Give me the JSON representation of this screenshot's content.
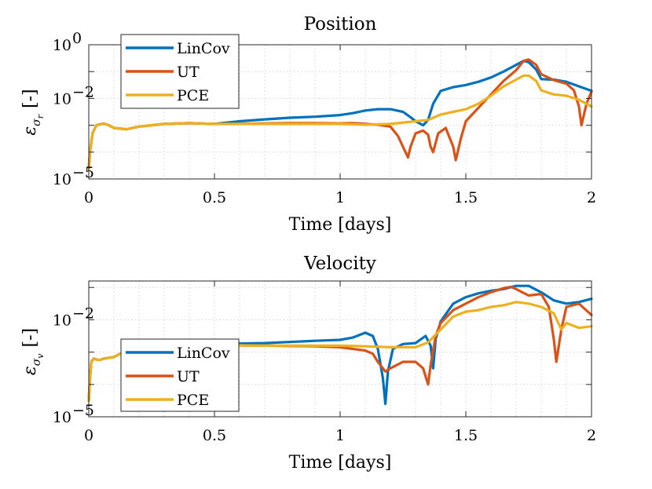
{
  "chart_data": [
    {
      "type": "line",
      "title": "Position",
      "xlabel": "Time [days]",
      "ylabel_main": "ε",
      "ylabel_sub": "σ",
      "ylabel_subsub": "r",
      "ylabel_unit": "[-]",
      "xlim": [
        0,
        2
      ],
      "ylim_log10": [
        -5,
        0
      ],
      "x_ticks": [
        0,
        0.5,
        1,
        1.5,
        2
      ],
      "x_tick_labels": [
        "0",
        "0.5",
        "1",
        "1.5",
        "2"
      ],
      "y_tick_labels": [
        {
          "log": 0,
          "mant": "10",
          "exp": "0"
        },
        {
          "log": -2,
          "mant": "10",
          "exp": "−2"
        },
        {
          "log": -5,
          "mant": "10",
          "exp": "−5"
        }
      ],
      "legend_position": "top-left",
      "series": [
        {
          "name": "LinCov",
          "color": "#0072BD",
          "x": [
            0.0,
            0.005,
            0.015,
            0.03,
            0.05,
            0.065,
            0.08,
            0.1,
            0.15,
            0.2,
            0.3,
            0.4,
            0.5,
            0.6,
            0.7,
            0.8,
            0.9,
            1.0,
            1.05,
            1.1,
            1.15,
            1.2,
            1.25,
            1.28,
            1.3,
            1.33,
            1.35,
            1.37,
            1.4,
            1.45,
            1.5,
            1.55,
            1.6,
            1.65,
            1.7,
            1.73,
            1.75,
            1.78,
            1.8,
            1.85,
            1.9,
            1.95,
            2.0
          ],
          "log10": [
            -4.6,
            -4.0,
            -3.3,
            -3.0,
            -2.95,
            -2.95,
            -3.0,
            -3.1,
            -3.15,
            -3.05,
            -2.95,
            -2.92,
            -2.95,
            -2.85,
            -2.78,
            -2.72,
            -2.68,
            -2.62,
            -2.55,
            -2.45,
            -2.4,
            -2.4,
            -2.5,
            -2.7,
            -2.85,
            -3.0,
            -2.8,
            -2.2,
            -1.72,
            -1.58,
            -1.5,
            -1.38,
            -1.22,
            -1.0,
            -0.75,
            -0.6,
            -0.65,
            -0.92,
            -1.28,
            -1.3,
            -1.38,
            -1.55,
            -1.72
          ]
        },
        {
          "name": "UT",
          "color": "#D95319",
          "x": [
            0.0,
            0.005,
            0.015,
            0.03,
            0.05,
            0.065,
            0.08,
            0.1,
            0.15,
            0.2,
            0.3,
            0.4,
            0.5,
            0.6,
            0.7,
            0.8,
            0.9,
            1.0,
            1.05,
            1.1,
            1.15,
            1.2,
            1.23,
            1.26,
            1.27,
            1.28,
            1.3,
            1.33,
            1.35,
            1.36,
            1.37,
            1.39,
            1.42,
            1.45,
            1.46,
            1.48,
            1.5,
            1.55,
            1.6,
            1.65,
            1.7,
            1.73,
            1.75,
            1.78,
            1.8,
            1.85,
            1.9,
            1.93,
            1.95,
            1.96,
            1.98,
            2.0
          ],
          "log10": [
            -4.6,
            -4.0,
            -3.3,
            -3.0,
            -2.95,
            -2.95,
            -3.0,
            -3.1,
            -3.15,
            -3.05,
            -2.95,
            -2.92,
            -2.95,
            -2.95,
            -2.93,
            -2.92,
            -2.92,
            -2.93,
            -2.92,
            -2.95,
            -2.98,
            -3.05,
            -3.4,
            -4.0,
            -4.2,
            -3.8,
            -3.3,
            -3.2,
            -3.35,
            -3.8,
            -4.0,
            -3.3,
            -3.1,
            -3.8,
            -4.3,
            -3.5,
            -2.85,
            -2.35,
            -1.85,
            -1.35,
            -0.95,
            -0.6,
            -0.55,
            -0.75,
            -1.1,
            -1.32,
            -1.45,
            -1.7,
            -2.3,
            -3.0,
            -2.2,
            -1.75
          ]
        },
        {
          "name": "PCE",
          "color": "#EDB120",
          "x": [
            0.0,
            0.005,
            0.015,
            0.03,
            0.05,
            0.065,
            0.08,
            0.1,
            0.15,
            0.2,
            0.3,
            0.4,
            0.5,
            0.6,
            0.7,
            0.8,
            0.9,
            1.0,
            1.1,
            1.2,
            1.3,
            1.35,
            1.4,
            1.45,
            1.5,
            1.55,
            1.6,
            1.65,
            1.7,
            1.73,
            1.75,
            1.78,
            1.8,
            1.85,
            1.9,
            1.95,
            2.0
          ],
          "log10": [
            -4.6,
            -4.0,
            -3.3,
            -3.0,
            -2.95,
            -2.95,
            -3.0,
            -3.1,
            -3.15,
            -3.05,
            -2.95,
            -2.92,
            -2.95,
            -2.95,
            -2.95,
            -2.95,
            -2.95,
            -2.95,
            -2.98,
            -2.95,
            -2.85,
            -2.8,
            -2.6,
            -2.5,
            -2.4,
            -2.2,
            -1.9,
            -1.55,
            -1.3,
            -1.15,
            -1.15,
            -1.35,
            -1.7,
            -1.85,
            -1.9,
            -2.05,
            -2.3
          ]
        }
      ]
    },
    {
      "type": "line",
      "title": "Velocity",
      "xlabel": "Time [days]",
      "ylabel_main": "ε",
      "ylabel_sub": "σ",
      "ylabel_subsub": "v",
      "ylabel_unit": "[-]",
      "xlim": [
        0,
        2
      ],
      "ylim_log10": [
        -5,
        -0.8
      ],
      "x_ticks": [
        0,
        0.5,
        1,
        1.5,
        2
      ],
      "x_tick_labels": [
        "0",
        "0.5",
        "1",
        "1.5",
        "2"
      ],
      "y_tick_labels": [
        {
          "log": -2,
          "mant": "10",
          "exp": "−2"
        },
        {
          "log": -5,
          "mant": "10",
          "exp": "−5"
        }
      ],
      "legend_position": "bottom-left",
      "series": [
        {
          "name": "LinCov",
          "color": "#0072BD",
          "x": [
            0.0,
            0.005,
            0.01,
            0.02,
            0.04,
            0.06,
            0.1,
            0.15,
            0.2,
            0.25,
            0.3,
            0.5,
            0.7,
            0.9,
            1.0,
            1.05,
            1.1,
            1.13,
            1.15,
            1.17,
            1.18,
            1.19,
            1.21,
            1.25,
            1.3,
            1.34,
            1.36,
            1.37,
            1.38,
            1.4,
            1.45,
            1.5,
            1.55,
            1.6,
            1.65,
            1.7,
            1.75,
            1.8,
            1.85,
            1.9,
            1.95,
            2.0
          ],
          "log10": [
            -4.5,
            -3.8,
            -3.3,
            -3.2,
            -3.25,
            -3.2,
            -3.15,
            -2.95,
            -2.85,
            -2.8,
            -2.8,
            -2.75,
            -2.72,
            -2.65,
            -2.62,
            -2.55,
            -2.4,
            -2.5,
            -2.9,
            -3.8,
            -4.6,
            -3.6,
            -2.9,
            -2.75,
            -2.72,
            -2.5,
            -2.8,
            -3.5,
            -2.6,
            -2.05,
            -1.5,
            -1.3,
            -1.18,
            -1.1,
            -1.05,
            -0.95,
            -0.95,
            -1.15,
            -1.4,
            -1.5,
            -1.45,
            -1.35
          ]
        },
        {
          "name": "UT",
          "color": "#D95319",
          "x": [
            0.0,
            0.005,
            0.01,
            0.02,
            0.04,
            0.06,
            0.1,
            0.15,
            0.2,
            0.25,
            0.3,
            0.5,
            0.7,
            0.9,
            1.0,
            1.05,
            1.1,
            1.13,
            1.15,
            1.18,
            1.2,
            1.25,
            1.3,
            1.33,
            1.35,
            1.36,
            1.38,
            1.4,
            1.45,
            1.5,
            1.55,
            1.6,
            1.65,
            1.68,
            1.7,
            1.75,
            1.8,
            1.83,
            1.85,
            1.86,
            1.88,
            1.9,
            1.95,
            2.0
          ],
          "log10": [
            -4.5,
            -3.8,
            -3.3,
            -3.2,
            -3.25,
            -3.2,
            -3.15,
            -2.95,
            -2.85,
            -2.8,
            -2.8,
            -2.78,
            -2.8,
            -2.82,
            -2.85,
            -2.9,
            -2.95,
            -3.05,
            -3.3,
            -3.6,
            -3.5,
            -3.3,
            -3.3,
            -3.5,
            -4.0,
            -3.4,
            -2.5,
            -2.1,
            -1.7,
            -1.5,
            -1.3,
            -1.15,
            -1.02,
            -0.98,
            -1.05,
            -1.25,
            -1.2,
            -1.6,
            -2.6,
            -3.3,
            -2.3,
            -1.6,
            -1.5,
            -1.85
          ]
        },
        {
          "name": "PCE",
          "color": "#EDB120",
          "x": [
            0.0,
            0.005,
            0.01,
            0.02,
            0.04,
            0.06,
            0.1,
            0.15,
            0.2,
            0.25,
            0.3,
            0.5,
            0.7,
            0.9,
            1.0,
            1.1,
            1.2,
            1.3,
            1.35,
            1.4,
            1.45,
            1.5,
            1.55,
            1.6,
            1.65,
            1.7,
            1.75,
            1.8,
            1.85,
            1.88,
            1.9,
            1.95,
            2.0
          ],
          "log10": [
            -4.5,
            -3.8,
            -3.3,
            -3.2,
            -3.25,
            -3.2,
            -3.15,
            -2.95,
            -2.85,
            -2.8,
            -2.8,
            -2.78,
            -2.8,
            -2.8,
            -2.8,
            -2.82,
            -2.85,
            -2.85,
            -2.7,
            -2.3,
            -1.9,
            -1.75,
            -1.7,
            -1.6,
            -1.55,
            -1.45,
            -1.5,
            -1.6,
            -1.8,
            -2.3,
            -2.1,
            -2.25,
            -2.2
          ]
        }
      ]
    }
  ]
}
